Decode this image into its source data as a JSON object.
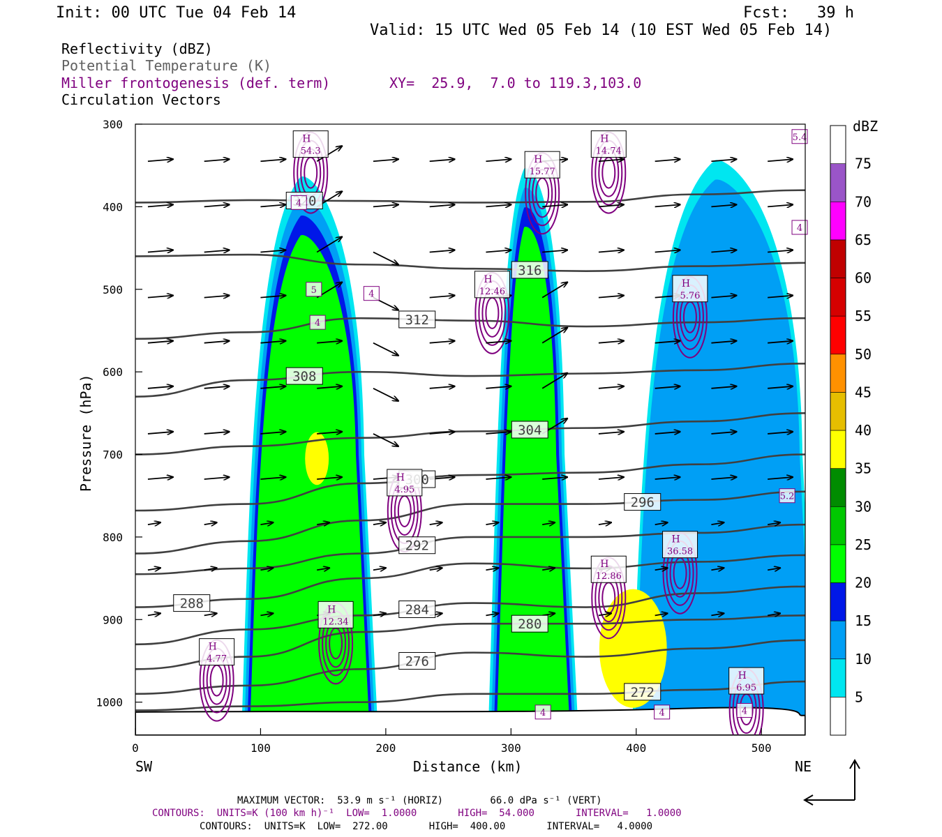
{
  "header": {
    "init": "Init: 00 UTC Tue 04 Feb 14",
    "fcst": "Fcst:   39 h",
    "valid": "Valid: 15 UTC Wed 05 Feb 14 (10 EST Wed 05 Feb 14)"
  },
  "legend_lines": {
    "reflectivity": "Reflectivity (dBZ)",
    "theta": "Potential Temperature (K)",
    "frontogenesis": "Miller frontogenesis (def. term)",
    "xy": "XY=  25.9,  7.0 to 119.3,103.0",
    "vectors": "Circulation Vectors"
  },
  "colors": {
    "frontogenesis": "#7f007f",
    "theta": "#404040",
    "text": "#000000"
  },
  "footer": {
    "max_vector": "MAXIMUM VECTOR:  53.9 m s⁻¹ (HORIZ)        66.0 dPa s⁻¹ (VERT)",
    "contours1": "CONTOURS:  UNITS=K (100 km h)⁻¹  LOW=  1.0000       HIGH=  54.000       INTERVAL=   1.0000",
    "contours2": "CONTOURS:  UNITS=K  LOW=  272.00       HIGH=  400.00       INTERVAL=   4.0000"
  },
  "chart_data": {
    "type": "heatmap",
    "xlabel": "Distance (km)",
    "ylabel": "Pressure (hPa)",
    "x_ticks": [
      0,
      100,
      200,
      300,
      400,
      500
    ],
    "y_ticks": [
      300,
      400,
      500,
      600,
      700,
      800,
      900,
      1000
    ],
    "xlim": [
      0,
      535
    ],
    "ylim": [
      1040,
      300
    ],
    "x_end_labels": {
      "left": "SW",
      "right": "NE"
    },
    "colorbar": {
      "unit": "dBZ",
      "levels": [
        5,
        10,
        15,
        20,
        25,
        30,
        35,
        40,
        45,
        50,
        55,
        60,
        65,
        70,
        75
      ],
      "colors": [
        "#ffffff",
        "#00e6f0",
        "#009ff5",
        "#0018e8",
        "#00ff00",
        "#00c800",
        "#008c00",
        "#ffff00",
        "#e6be00",
        "#ff9100",
        "#ff0000",
        "#d60000",
        "#c00000",
        "#ff00ff",
        "#9a55c8"
      ]
    },
    "reflectivity_columns": [
      {
        "x": [
          88,
          185
        ],
        "top": 340,
        "level": 25
      },
      {
        "x": [
          285,
          345
        ],
        "top": 330,
        "level": 25
      },
      {
        "x": [
          400,
          535
        ],
        "top": 320,
        "level": 15
      }
    ],
    "theta_contours": [
      {
        "label": "320",
        "p": [
          395,
          392,
          393,
          395,
          394,
          385,
          380
        ]
      },
      {
        "label": "316",
        "p": [
          460,
          458,
          470,
          475,
          478,
          472,
          468
        ]
      },
      {
        "label": "312",
        "p": [
          560,
          552,
          535,
          538,
          545,
          540,
          535
        ]
      },
      {
        "label": "308",
        "p": [
          630,
          610,
          600,
          605,
          602,
          598,
          590
        ]
      },
      {
        "label": "304",
        "p": [
          700,
          690,
          680,
          672,
          668,
          660,
          650
        ]
      },
      {
        "label": "300",
        "p": [
          768,
          760,
          735,
          725,
          722,
          712,
          700
        ]
      },
      {
        "label": "296",
        "p": [
          820,
          805,
          780,
          760,
          760,
          755,
          745
        ]
      },
      {
        "label": "292",
        "p": [
          845,
          838,
          820,
          800,
          800,
          795,
          785
        ]
      },
      {
        "label": "288",
        "p": [
          885,
          875,
          850,
          832,
          838,
          830,
          822
        ]
      },
      {
        "label": "284",
        "p": [
          930,
          912,
          895,
          880,
          885,
          868,
          860
        ]
      },
      {
        "label": "280",
        "p": [
          960,
          945,
          915,
          905,
          905,
          900,
          895
        ]
      },
      {
        "label": "276",
        "p": [
          990,
          980,
          960,
          940,
          945,
          935,
          925
        ]
      },
      {
        "label": "272",
        "p": [
          1010,
          1005,
          1000,
          990,
          990,
          985,
          975
        ]
      }
    ],
    "theta_x": [
      0,
      90,
      180,
      270,
      360,
      450,
      535
    ],
    "frontogenesis_maxima": [
      {
        "label": "54.3",
        "x": 140,
        "p": 325
      },
      {
        "label": "15.77",
        "x": 325,
        "p": 350
      },
      {
        "label": "14.74",
        "x": 378,
        "p": 325
      },
      {
        "label": "12.46",
        "x": 285,
        "p": 495
      },
      {
        "label": "5.76",
        "x": 443,
        "p": 500
      },
      {
        "label": "4.95",
        "x": 215,
        "p": 735
      },
      {
        "label": "12.34",
        "x": 160,
        "p": 895
      },
      {
        "label": "4.77",
        "x": 65,
        "p": 940
      },
      {
        "label": "36.58",
        "x": 435,
        "p": 810
      },
      {
        "label": "12.86",
        "x": 378,
        "p": 840
      },
      {
        "label": "6.95",
        "x": 488,
        "p": 975
      }
    ],
    "small_labels": [
      "5.4",
      "4",
      "4",
      "5",
      "4",
      "4",
      "5.2",
      "4",
      "4",
      "4"
    ],
    "max_vector_arrow": true
  }
}
